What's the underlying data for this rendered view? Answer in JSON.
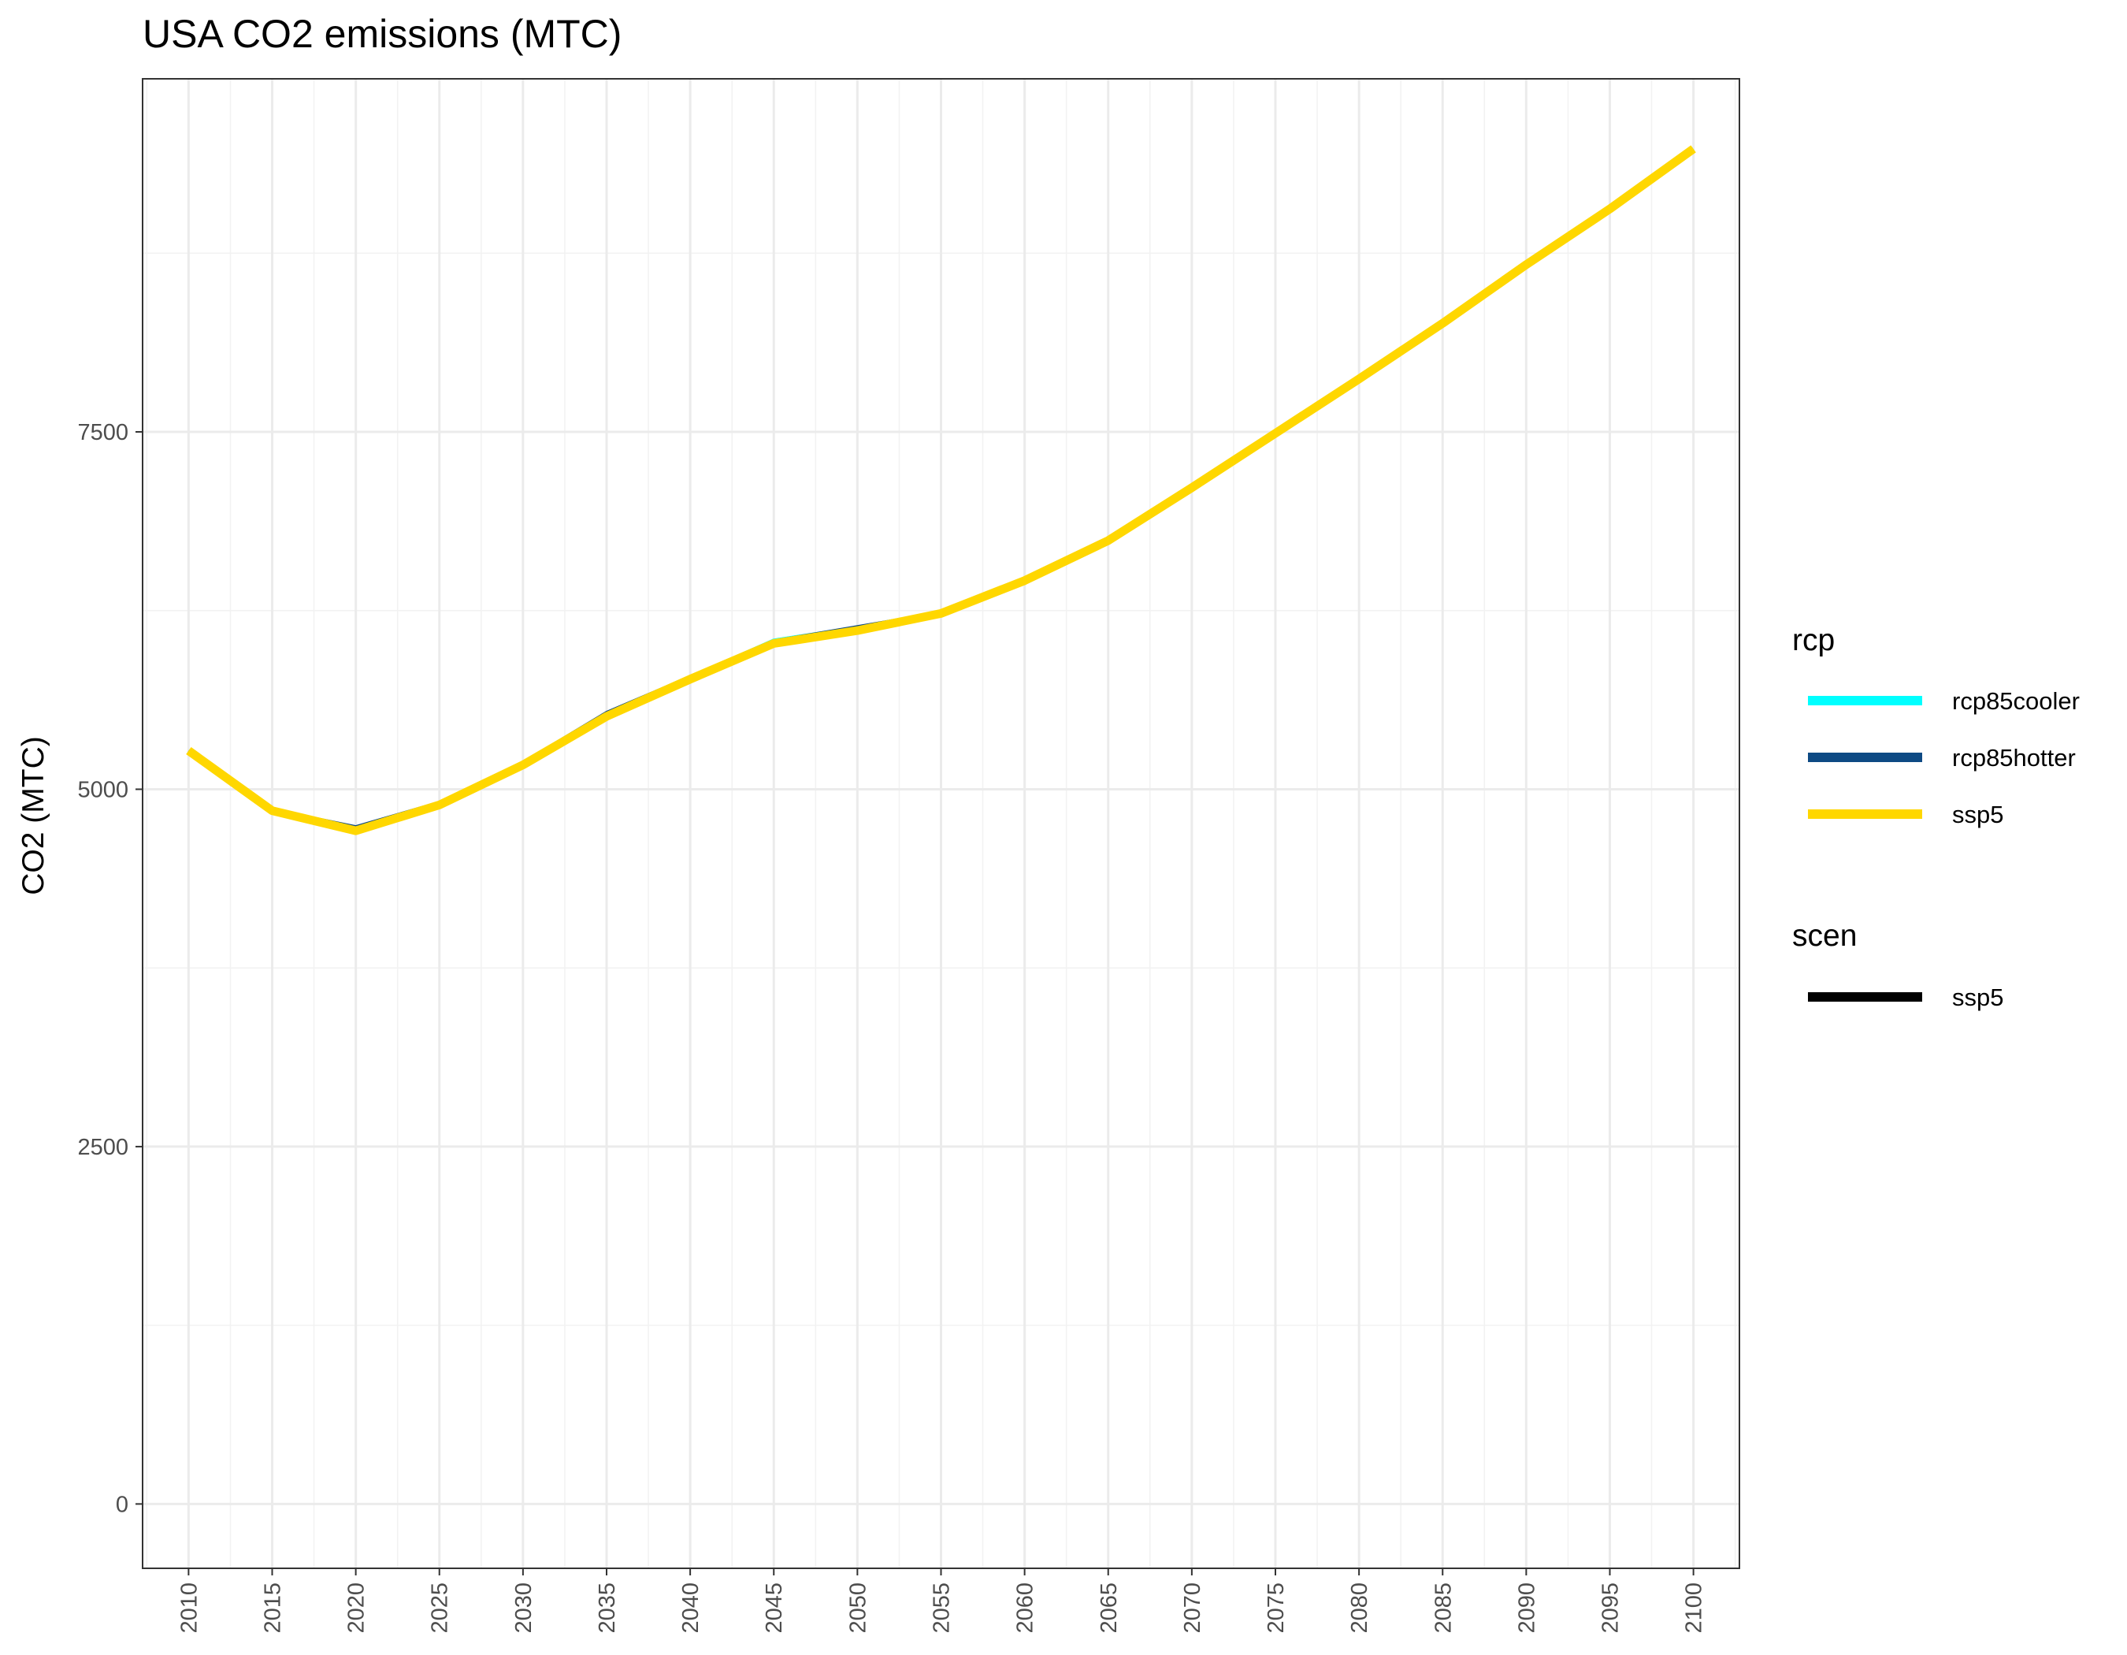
{
  "chart_data": {
    "type": "line",
    "title": "USA CO2 emissions (MTC)",
    "xlabel": "",
    "ylabel": "CO2 (MTC)",
    "x": [
      2010,
      2015,
      2020,
      2025,
      2030,
      2035,
      2040,
      2045,
      2050,
      2055,
      2060,
      2065,
      2070,
      2075,
      2080,
      2085,
      2090,
      2095,
      2100
    ],
    "xlim": [
      2007.25,
      2102.75
    ],
    "ylim": [
      -450,
      9970
    ],
    "yticks": [
      0,
      2500,
      5000,
      7500
    ],
    "grid": true,
    "legend_position": "right",
    "series": [
      {
        "name": "rcp85cooler",
        "group": "rcp",
        "color": "#00FFFF",
        "values": [
          5270,
          4860,
          4730,
          4900,
          5180,
          5530,
          5780,
          6040,
          6130,
          6240,
          6460,
          6740,
          7110,
          7490,
          7870,
          8260,
          8670,
          9060,
          9480
        ]
      },
      {
        "name": "rcp85hotter",
        "group": "rcp",
        "color": "#0E4A84",
        "values": [
          5270,
          4860,
          4740,
          4910,
          5190,
          5540,
          5790,
          6040,
          6140,
          6240,
          6460,
          6750,
          7110,
          7490,
          7870,
          8250,
          8660,
          9060,
          9470
        ]
      },
      {
        "name": "ssp5",
        "group": "rcp",
        "color": "#FFD700",
        "values": [
          5270,
          4850,
          4710,
          4890,
          5170,
          5510,
          5770,
          6020,
          6110,
          6230,
          6460,
          6740,
          7110,
          7490,
          7870,
          8260,
          8670,
          9060,
          9480
        ]
      }
    ]
  },
  "legend": {
    "rcp_title": "rcp",
    "rcp_items": [
      {
        "label": "rcp85cooler",
        "color": "#00FFFF"
      },
      {
        "label": "rcp85hotter",
        "color": "#0E4A84"
      },
      {
        "label": "ssp5",
        "color": "#FFD700"
      }
    ],
    "scen_title": "scen",
    "scen_items": [
      {
        "label": "ssp5",
        "color": "#000000"
      }
    ]
  }
}
